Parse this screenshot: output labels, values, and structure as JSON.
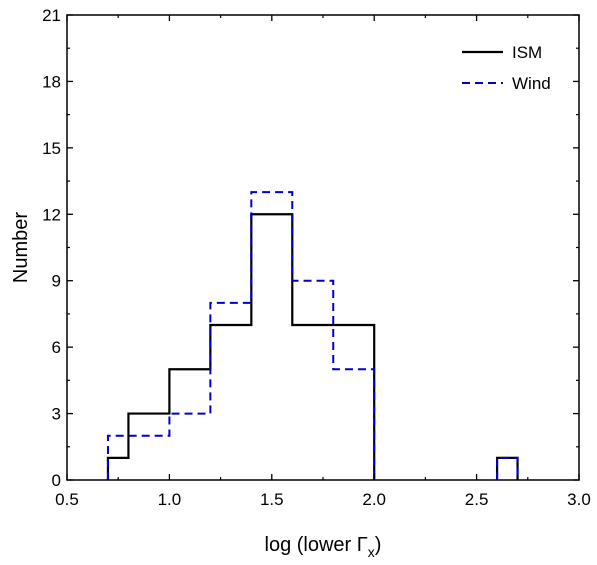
{
  "chart_data": {
    "type": "histogram",
    "title": "",
    "xlabel": "log (lower Γ",
    "xlabel_sub": "x",
    "xlabel_close": ")",
    "ylabel": "Number",
    "xlim": [
      0.5,
      3.0
    ],
    "ylim": [
      0,
      21
    ],
    "xticks": [
      0.5,
      1.0,
      1.5,
      2.0,
      2.5,
      3.0
    ],
    "xtick_labels": [
      "0.5",
      "1.0",
      "1.5",
      "2.0",
      "2.5",
      "3.0"
    ],
    "yticks": [
      0,
      3,
      6,
      9,
      12,
      15,
      18,
      21
    ],
    "ytick_labels": [
      "0",
      "3",
      "6",
      "9",
      "12",
      "15",
      "18",
      "21"
    ],
    "grid": false,
    "legend_position": "top-right",
    "series": [
      {
        "name": "ISM",
        "color": "#000000",
        "style": "solid",
        "bins": [
          {
            "x0": 0.7,
            "x1": 0.8,
            "count": 1
          },
          {
            "x0": 0.8,
            "x1": 1.0,
            "count": 3
          },
          {
            "x0": 1.0,
            "x1": 1.2,
            "count": 5
          },
          {
            "x0": 1.2,
            "x1": 1.4,
            "count": 7
          },
          {
            "x0": 1.4,
            "x1": 1.6,
            "count": 12
          },
          {
            "x0": 1.6,
            "x1": 2.0,
            "count": 7
          },
          {
            "x0": 2.6,
            "x1": 2.7,
            "count": 1
          }
        ]
      },
      {
        "name": "Wind",
        "color": "#0000cc",
        "style": "dashed",
        "bins": [
          {
            "x0": 0.7,
            "x1": 1.0,
            "count": 2
          },
          {
            "x0": 1.0,
            "x1": 1.2,
            "count": 3
          },
          {
            "x0": 1.2,
            "x1": 1.4,
            "count": 8
          },
          {
            "x0": 1.4,
            "x1": 1.6,
            "count": 13
          },
          {
            "x0": 1.6,
            "x1": 1.8,
            "count": 9
          },
          {
            "x0": 1.8,
            "x1": 2.0,
            "count": 5
          },
          {
            "x0": 2.6,
            "x1": 2.7,
            "count": 1
          }
        ]
      }
    ]
  }
}
